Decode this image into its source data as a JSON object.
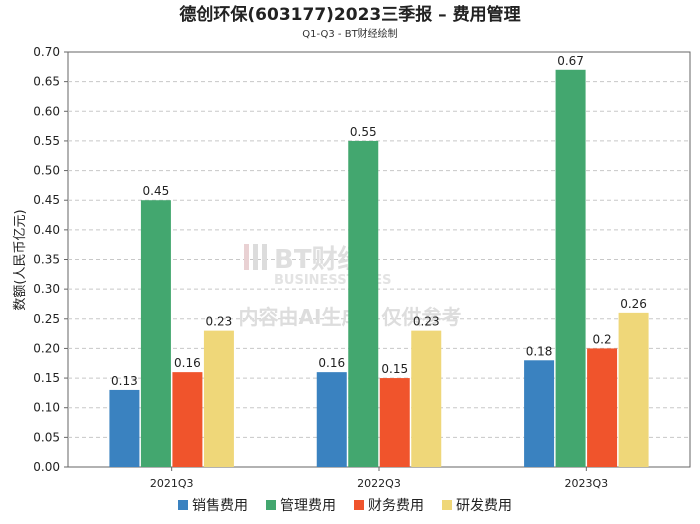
{
  "chart_data": {
    "type": "bar",
    "title": "德创环保(603177)2023三季报 – 费用管理",
    "subtitle": "Q1-Q3 - BT财经绘制",
    "ylabel": "数额(人民币亿元)",
    "xlabel": "",
    "ylim": [
      0,
      0.7
    ],
    "yticks": [
      "0.00",
      "0.05",
      "0.10",
      "0.15",
      "0.20",
      "0.25",
      "0.30",
      "0.35",
      "0.40",
      "0.45",
      "0.50",
      "0.55",
      "0.60",
      "0.65",
      "0.70"
    ],
    "categories": [
      "2021Q3",
      "2022Q3",
      "2023Q3"
    ],
    "series": [
      {
        "name": "销售费用",
        "color": "#3a82c0",
        "values": [
          0.13,
          0.16,
          0.18
        ],
        "labels": [
          "0.13",
          "0.16",
          "0.18"
        ]
      },
      {
        "name": "管理费用",
        "color": "#43a76f",
        "values": [
          0.45,
          0.55,
          0.67
        ],
        "labels": [
          "0.45",
          "0.55",
          "0.67"
        ]
      },
      {
        "name": "财务费用",
        "color": "#f0542c",
        "values": [
          0.16,
          0.15,
          0.2
        ],
        "labels": [
          "0.16",
          "0.15",
          "0.2"
        ]
      },
      {
        "name": "研发费用",
        "color": "#efd779",
        "values": [
          0.23,
          0.23,
          0.26
        ],
        "labels": [
          "0.23",
          "0.23",
          "0.26"
        ]
      }
    ],
    "grid": true,
    "legend_position": "bottom-center"
  },
  "watermark": {
    "brand": "BT财经",
    "brand_en": "BUSINESSTIMES",
    "notice": "内容由AI生成，仅供参考"
  }
}
